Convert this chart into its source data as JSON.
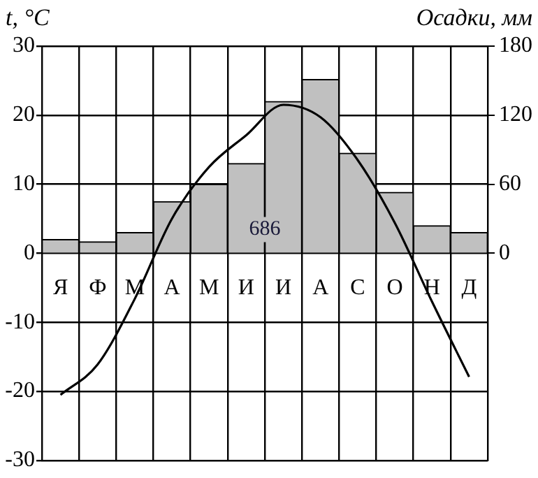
{
  "chart_data": {
    "type": "bar",
    "ylabel": "t, °C",
    "y2label": "Осадки, мм",
    "categories": [
      "Я",
      "Ф",
      "М",
      "А",
      "М",
      "И",
      "И",
      "А",
      "С",
      "О",
      "Н",
      "Д"
    ],
    "series": [
      {
        "axis": "y2",
        "color": "#c0c0c0",
        "values": [
          12,
          10,
          18,
          45,
          60,
          78,
          132,
          151,
          87,
          53,
          24,
          18
        ]
      },
      {
        "type": "line",
        "axis": "y",
        "color": "#000000",
        "values": [
          -20.5,
          -16.1,
          -6.6,
          5,
          12.5,
          17.1,
          21.5,
          19.7,
          13.5,
          4.4,
          -7,
          -17.9
        ]
      }
    ],
    "ylim": [
      -30,
      30
    ],
    "yticks": [
      -30,
      -20,
      -10,
      0,
      10,
      20,
      30
    ],
    "y2lim": [
      -180,
      180
    ],
    "y2ticks": [
      0,
      60,
      120,
      180
    ],
    "annotations": [
      "686"
    ],
    "grid": true,
    "legend": false,
    "marker": "none",
    "line_style": "solid"
  }
}
